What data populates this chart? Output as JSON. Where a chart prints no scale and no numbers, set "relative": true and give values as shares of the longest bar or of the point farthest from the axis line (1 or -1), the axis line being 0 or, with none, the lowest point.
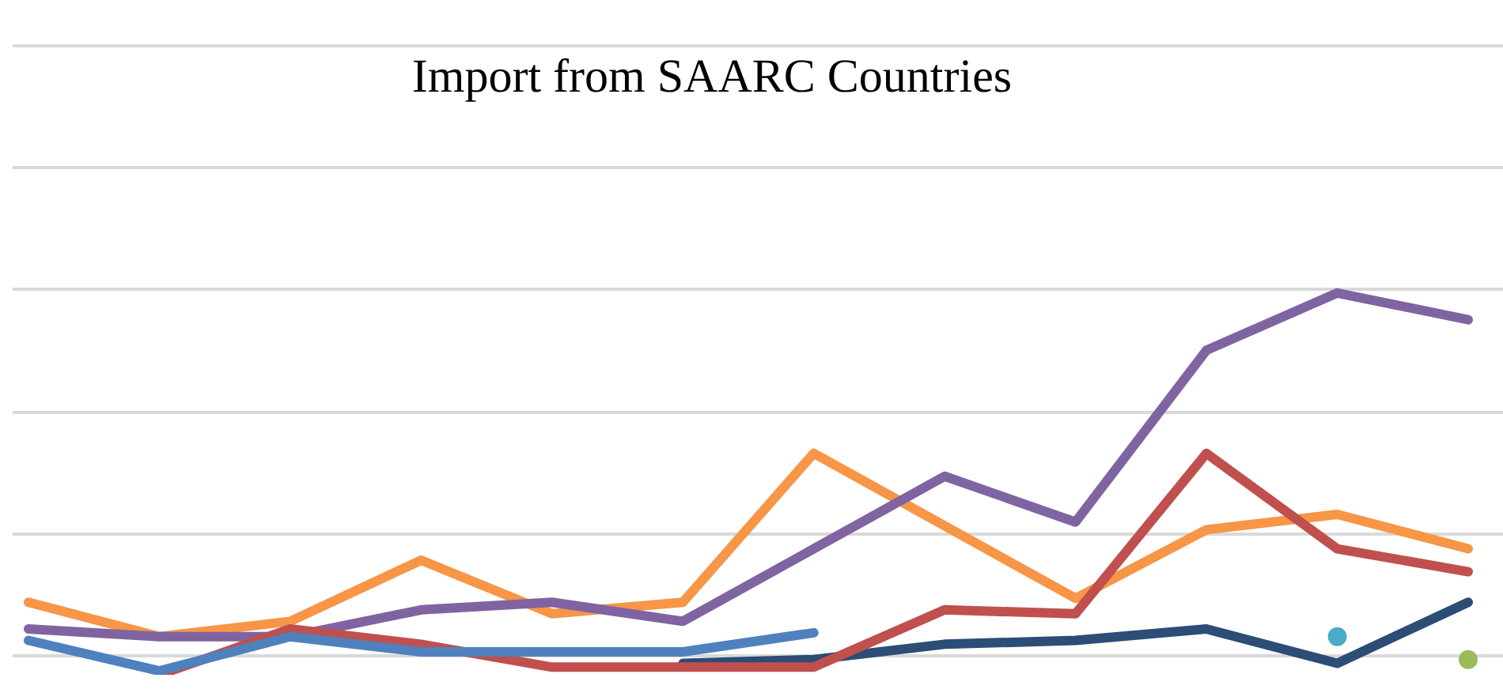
{
  "chart_data": {
    "type": "line",
    "title": "Import from SAARC Countries",
    "relative": true,
    "grid": true,
    "legend": false,
    "marker": "none",
    "line_style": "solid",
    "categories": [
      null,
      null,
      null,
      null,
      null,
      null,
      null,
      null,
      null,
      null,
      null,
      null
    ],
    "series": [
      {
        "color": "#4f81bd",
        "values": [
          0.09,
          0.01,
          0.1,
          0.06,
          0.06,
          0.06,
          0.11,
          null,
          null,
          null,
          null,
          null
        ]
      },
      {
        "color": "#c0504d",
        "values": [
          null,
          0.0,
          0.12,
          0.08,
          0.02,
          0.02,
          0.02,
          0.17,
          0.16,
          0.58,
          0.33,
          0.27
        ]
      },
      {
        "color": "#2c4d75",
        "values": [
          null,
          null,
          null,
          null,
          null,
          0.03,
          0.04,
          0.08,
          0.09,
          0.12,
          0.03,
          0.19
        ]
      },
      {
        "color": "#4bacc6",
        "marker": "circle",
        "values": [
          null,
          null,
          null,
          null,
          null,
          null,
          null,
          null,
          null,
          null,
          0.1,
          null
        ]
      },
      {
        "color": "#9bbb59",
        "marker": "circle",
        "values": [
          null,
          null,
          null,
          null,
          null,
          null,
          null,
          null,
          null,
          null,
          null,
          0.04
        ]
      },
      {
        "color": "#8064a2",
        "values": [
          0.12,
          0.1,
          0.1,
          0.17,
          0.19,
          0.14,
          0.33,
          0.52,
          0.4,
          0.85,
          1.0,
          0.93
        ]
      },
      {
        "color": "#f79646",
        "values": [
          0.19,
          0.1,
          0.14,
          0.3,
          0.16,
          0.19,
          0.58,
          0.39,
          0.2,
          0.38,
          0.42,
          0.33
        ]
      }
    ]
  }
}
